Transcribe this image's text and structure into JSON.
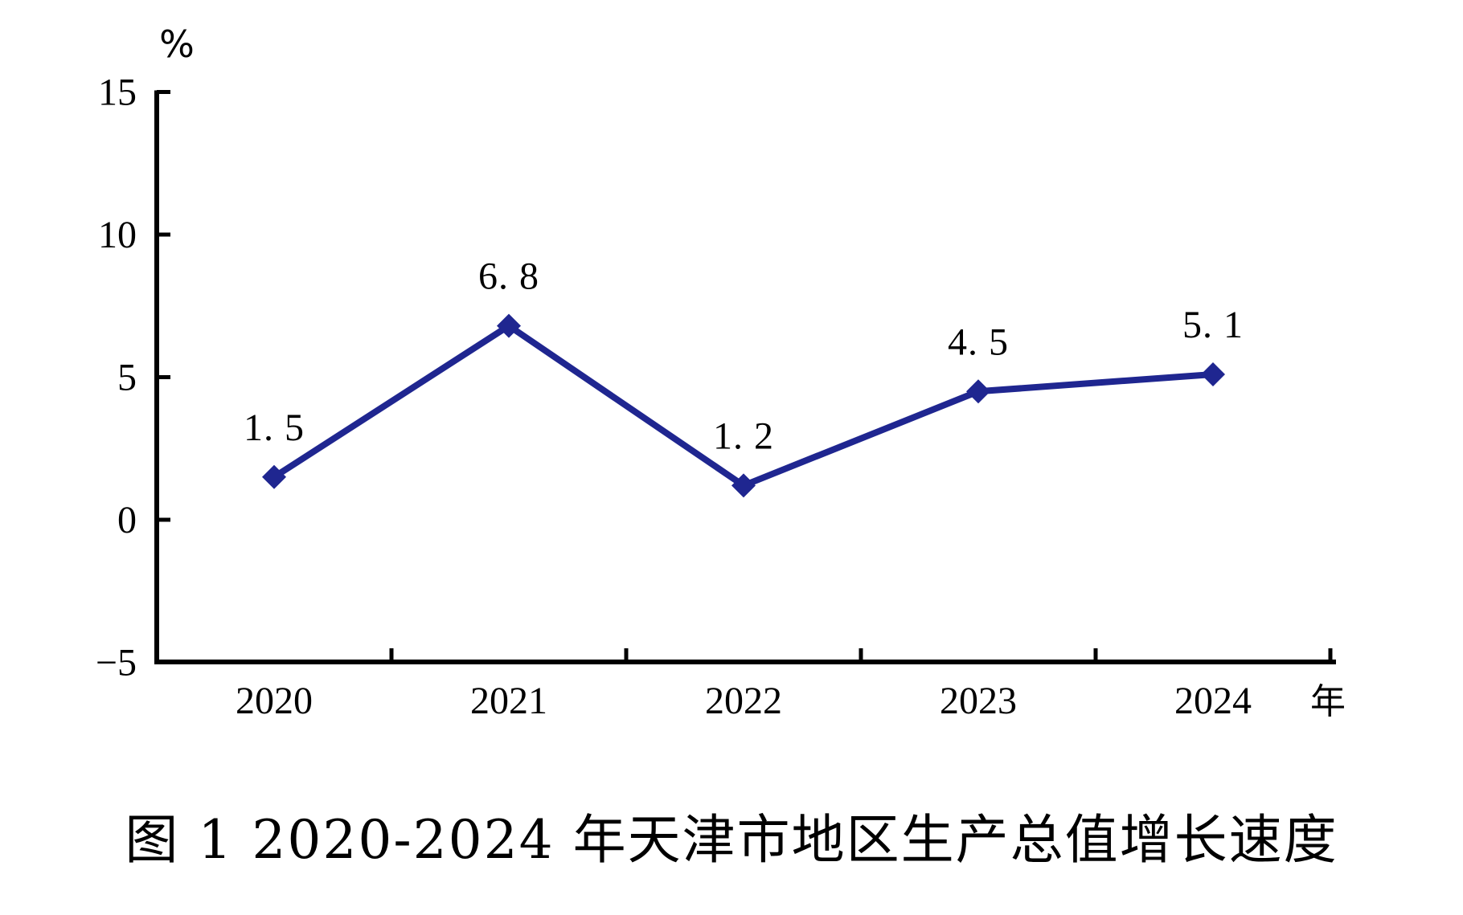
{
  "page": {
    "background_color": "#ffffff",
    "text_color": "#000000"
  },
  "chart_data": {
    "type": "line",
    "title": "图 1  2020-2024 年天津市地区生产总值增长速度",
    "ylabel": "%",
    "xlabel": "年",
    "categories": [
      "2020",
      "2021",
      "2022",
      "2023",
      "2024"
    ],
    "series": [
      {
        "name": "地区生产总值增长速度",
        "values": [
          1.5,
          6.8,
          1.2,
          4.5,
          5.1
        ]
      }
    ],
    "point_labels": [
      "1. 5",
      "6. 8",
      "1. 2",
      "4. 5",
      "5. 1"
    ],
    "yticks": [
      15,
      10,
      5,
      0,
      -5
    ],
    "ytick_labels": [
      "15",
      "10",
      "5",
      "0",
      "−5"
    ],
    "ylim": [
      -5,
      15
    ],
    "grid": false,
    "legend": "none",
    "line_color": "#1f2690",
    "marker": "diamond",
    "marker_color": "#1f2690",
    "axis_color": "#000000"
  }
}
